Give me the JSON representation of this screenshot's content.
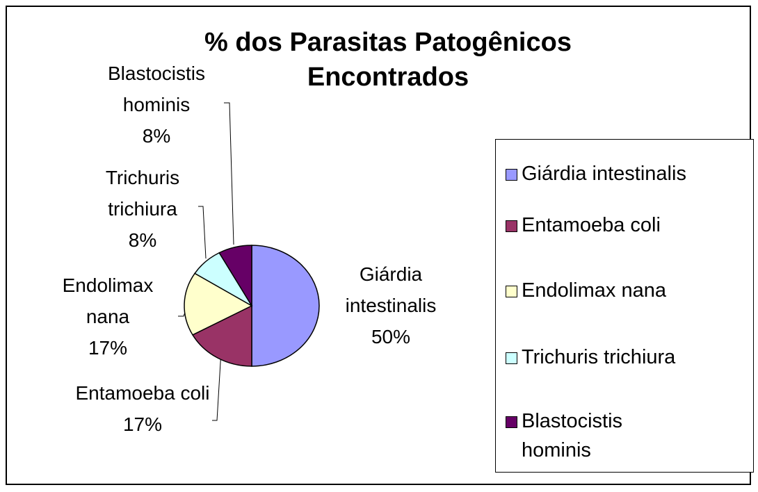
{
  "chart_data": {
    "type": "pie",
    "title": "% dos Parasitas Patogênicos Encontrados",
    "categories": [
      "Giárdia intestinalis",
      "Entamoeba coli",
      "Endolimax nana",
      "Trichuris trichiura",
      "Blastocistis hominis"
    ],
    "values": [
      50,
      17,
      17,
      8,
      8
    ],
    "value_labels": [
      "50%",
      "17%",
      "17%",
      "8%",
      "8%"
    ],
    "colors": [
      "#9999ff",
      "#993366",
      "#ffffcc",
      "#ccffff",
      "#660066"
    ],
    "legend": "right"
  }
}
